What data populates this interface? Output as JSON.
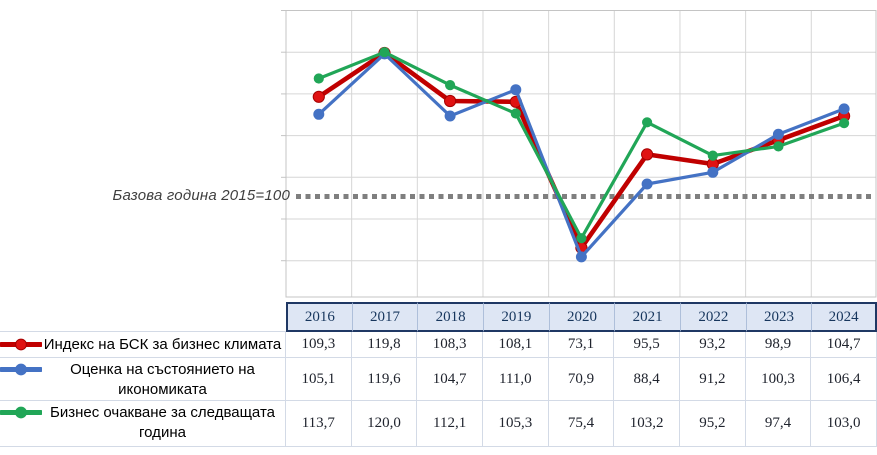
{
  "chart": {
    "baseline_label": "Базова година 2015=100",
    "colors": {
      "red": "#C00000",
      "red_marker": "#E01212",
      "blue": "#4472C4",
      "green": "#21A657",
      "grid": "#D6D6D6",
      "plot_border": "#C4C4C4",
      "baseline_dots": "#7F7F7F",
      "header_fill": "#DEE6F4",
      "header_border": "#1F3864",
      "header_text": "#17365D"
    }
  },
  "chart_data": {
    "type": "line",
    "categories": [
      "2016",
      "2017",
      "2018",
      "2019",
      "2020",
      "2021",
      "2022",
      "2023",
      "2024"
    ],
    "series": [
      {
        "name": "Индекс на БСК за бизнес климата",
        "color_key": "red",
        "values": [
          109.3,
          119.8,
          108.3,
          108.1,
          73.1,
          95.5,
          93.2,
          98.9,
          104.7
        ]
      },
      {
        "name": "Оценка на състоянието на икономиката",
        "color_key": "blue",
        "values": [
          105.1,
          119.6,
          104.7,
          111.0,
          70.9,
          88.4,
          91.2,
          100.3,
          106.4
        ]
      },
      {
        "name": "Бизнес очакване за следващата година",
        "color_key": "green",
        "values": [
          113.7,
          120.0,
          112.1,
          105.3,
          75.4,
          103.2,
          95.2,
          97.4,
          103.0
        ]
      }
    ],
    "annotations": [
      {
        "text": "Базова година 2015=100",
        "value": 100,
        "style": "dotted-gray-line"
      }
    ],
    "ylim": [
      60,
      130
    ],
    "grid_step": 10,
    "grid": true,
    "xlabel": "",
    "ylabel": "",
    "title": "",
    "legend_position": "table-left"
  },
  "table": {
    "years": [
      "2016",
      "2017",
      "2018",
      "2019",
      "2020",
      "2021",
      "2022",
      "2023",
      "2024"
    ],
    "rows": [
      {
        "label_lines": [
          "Индекс на БСК за бизнес климата"
        ],
        "series_key": "red",
        "values": [
          "109,3",
          "119,8",
          "108,3",
          "108,1",
          "73,1",
          "95,5",
          "93,2",
          "98,9",
          "104,7"
        ]
      },
      {
        "label_lines": [
          "Оценка на състоянието на",
          "икономиката"
        ],
        "series_key": "blue",
        "values": [
          "105,1",
          "119,6",
          "104,7",
          "111,0",
          "70,9",
          "88,4",
          "91,2",
          "100,3",
          "106,4"
        ]
      },
      {
        "label_lines": [
          "Бизнес очакване за следващата",
          "година"
        ],
        "series_key": "green",
        "values": [
          "113,7",
          "120,0",
          "112,1",
          "105,3",
          "75,4",
          "103,2",
          "95,2",
          "97,4",
          "103,0"
        ]
      }
    ]
  }
}
